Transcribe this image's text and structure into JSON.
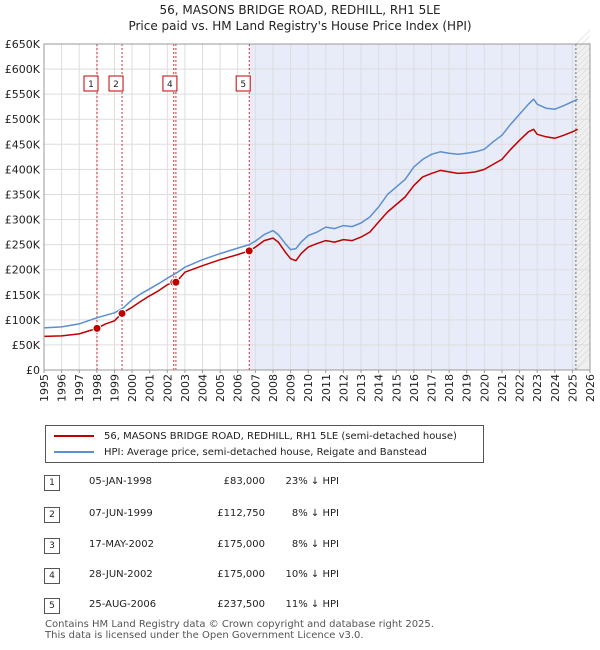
{
  "chart_data": {
    "type": "line",
    "title": "56, MASONS BRIDGE ROAD, REDHILL, RH1 5LE",
    "subtitle": "Price paid vs. HM Land Registry's House Price Index (HPI)",
    "xlim": [
      1995,
      2026
    ],
    "ylim": [
      0,
      650000
    ],
    "x_ticks": [
      "1995",
      "1996",
      "1997",
      "1998",
      "1999",
      "2000",
      "2001",
      "2002",
      "2003",
      "2004",
      "2005",
      "2006",
      "2007",
      "2008",
      "2009",
      "2010",
      "2011",
      "2012",
      "2013",
      "2014",
      "2015",
      "2016",
      "2017",
      "2018",
      "2019",
      "2020",
      "2021",
      "2022",
      "2023",
      "2024",
      "2025",
      "2026"
    ],
    "y_ticks": [
      {
        "v": 0,
        "label": "£0"
      },
      {
        "v": 50000,
        "label": "£50K"
      },
      {
        "v": 100000,
        "label": "£100K"
      },
      {
        "v": 150000,
        "label": "£150K"
      },
      {
        "v": 200000,
        "label": "£200K"
      },
      {
        "v": 250000,
        "label": "£250K"
      },
      {
        "v": 300000,
        "label": "£300K"
      },
      {
        "v": 350000,
        "label": "£350K"
      },
      {
        "v": 400000,
        "label": "£400K"
      },
      {
        "v": 450000,
        "label": "£450K"
      },
      {
        "v": 500000,
        "label": "£500K"
      },
      {
        "v": 550000,
        "label": "£550K"
      },
      {
        "v": 600000,
        "label": "£600K"
      },
      {
        "v": 650000,
        "label": "£650K"
      }
    ],
    "shaded_from": 2006.65,
    "future_from": 2025.2,
    "series": [
      {
        "name": "56, MASONS BRIDGE ROAD, REDHILL, RH1 5LE (semi-detached house)",
        "color": "#c00000",
        "points": [
          [
            1995.0,
            67000
          ],
          [
            1996.0,
            68000
          ],
          [
            1997.0,
            72000
          ],
          [
            1998.0,
            83000
          ],
          [
            1998.5,
            92000
          ],
          [
            1999.0,
            98000
          ],
          [
            1999.4,
            112750
          ],
          [
            2000.0,
            125000
          ],
          [
            2000.5,
            137000
          ],
          [
            2001.0,
            148000
          ],
          [
            2001.5,
            158000
          ],
          [
            2002.0,
            170000
          ],
          [
            2002.4,
            175000
          ],
          [
            2002.5,
            175000
          ],
          [
            2003.0,
            195000
          ],
          [
            2004.0,
            208000
          ],
          [
            2005.0,
            220000
          ],
          [
            2006.0,
            230000
          ],
          [
            2006.65,
            237500
          ],
          [
            2007.0,
            245000
          ],
          [
            2007.5,
            258000
          ],
          [
            2008.0,
            263000
          ],
          [
            2008.3,
            255000
          ],
          [
            2008.7,
            235000
          ],
          [
            2009.0,
            222000
          ],
          [
            2009.3,
            218000
          ],
          [
            2009.6,
            232000
          ],
          [
            2010.0,
            245000
          ],
          [
            2010.5,
            252000
          ],
          [
            2011.0,
            258000
          ],
          [
            2011.5,
            255000
          ],
          [
            2012.0,
            260000
          ],
          [
            2012.5,
            258000
          ],
          [
            2013.0,
            265000
          ],
          [
            2013.5,
            275000
          ],
          [
            2014.0,
            295000
          ],
          [
            2014.5,
            315000
          ],
          [
            2015.0,
            330000
          ],
          [
            2015.5,
            345000
          ],
          [
            2016.0,
            368000
          ],
          [
            2016.5,
            385000
          ],
          [
            2017.0,
            392000
          ],
          [
            2017.5,
            398000
          ],
          [
            2018.0,
            395000
          ],
          [
            2018.5,
            392000
          ],
          [
            2019.0,
            393000
          ],
          [
            2019.5,
            395000
          ],
          [
            2020.0,
            400000
          ],
          [
            2020.5,
            410000
          ],
          [
            2021.0,
            420000
          ],
          [
            2021.5,
            440000
          ],
          [
            2022.0,
            458000
          ],
          [
            2022.5,
            475000
          ],
          [
            2022.8,
            480000
          ],
          [
            2023.0,
            470000
          ],
          [
            2023.5,
            465000
          ],
          [
            2024.0,
            462000
          ],
          [
            2024.5,
            468000
          ],
          [
            2025.0,
            475000
          ],
          [
            2025.3,
            480000
          ]
        ]
      },
      {
        "name": "HPI: Average price, semi-detached house, Reigate and Banstead",
        "color": "#5b8fd0",
        "points": [
          [
            1995.0,
            84000
          ],
          [
            1996.0,
            86000
          ],
          [
            1997.0,
            92000
          ],
          [
            1998.0,
            104000
          ],
          [
            1998.5,
            109000
          ],
          [
            1999.0,
            114000
          ],
          [
            1999.5,
            124000
          ],
          [
            2000.0,
            140000
          ],
          [
            2000.5,
            152000
          ],
          [
            2001.0,
            162000
          ],
          [
            2001.5,
            172000
          ],
          [
            2002.0,
            183000
          ],
          [
            2002.5,
            193000
          ],
          [
            2003.0,
            205000
          ],
          [
            2004.0,
            220000
          ],
          [
            2005.0,
            232000
          ],
          [
            2006.0,
            243000
          ],
          [
            2006.65,
            250000
          ],
          [
            2007.0,
            257000
          ],
          [
            2007.5,
            270000
          ],
          [
            2008.0,
            278000
          ],
          [
            2008.3,
            270000
          ],
          [
            2008.7,
            252000
          ],
          [
            2009.0,
            240000
          ],
          [
            2009.3,
            242000
          ],
          [
            2009.6,
            255000
          ],
          [
            2010.0,
            268000
          ],
          [
            2010.5,
            275000
          ],
          [
            2011.0,
            285000
          ],
          [
            2011.5,
            282000
          ],
          [
            2012.0,
            288000
          ],
          [
            2012.5,
            286000
          ],
          [
            2013.0,
            293000
          ],
          [
            2013.5,
            305000
          ],
          [
            2014.0,
            325000
          ],
          [
            2014.5,
            350000
          ],
          [
            2015.0,
            365000
          ],
          [
            2015.5,
            380000
          ],
          [
            2016.0,
            405000
          ],
          [
            2016.5,
            420000
          ],
          [
            2017.0,
            430000
          ],
          [
            2017.5,
            435000
          ],
          [
            2018.0,
            432000
          ],
          [
            2018.5,
            430000
          ],
          [
            2019.0,
            432000
          ],
          [
            2019.5,
            435000
          ],
          [
            2020.0,
            440000
          ],
          [
            2020.5,
            455000
          ],
          [
            2021.0,
            468000
          ],
          [
            2021.5,
            490000
          ],
          [
            2022.0,
            510000
          ],
          [
            2022.5,
            530000
          ],
          [
            2022.8,
            540000
          ],
          [
            2023.0,
            530000
          ],
          [
            2023.5,
            522000
          ],
          [
            2024.0,
            520000
          ],
          [
            2024.5,
            527000
          ],
          [
            2025.0,
            535000
          ],
          [
            2025.3,
            540000
          ]
        ]
      }
    ],
    "sales": [
      {
        "id": "1",
        "x": 1998.01,
        "value": 83000,
        "date": "05-JAN-1998",
        "price": "£83,000",
        "hpi": "23% ↓ HPI"
      },
      {
        "id": "2",
        "x": 1999.43,
        "value": 112750,
        "date": "07-JUN-1999",
        "price": "£112,750",
        "hpi": "8% ↓ HPI"
      },
      {
        "id": "3",
        "x": 2002.37,
        "value": 175000,
        "date": "17-MAY-2002",
        "price": "£175,000",
        "hpi": "8% ↓ HPI"
      },
      {
        "id": "4",
        "x": 2002.49,
        "value": 175000,
        "date": "28-JUN-2002",
        "price": "£175,000",
        "hpi": "10% ↓ HPI"
      },
      {
        "id": "5",
        "x": 2006.65,
        "value": 237500,
        "date": "25-AUG-2006",
        "price": "£237,500",
        "hpi": "11% ↓ HPI"
      }
    ],
    "marker_labels": [
      "1",
      "2",
      "4",
      "5"
    ]
  },
  "legend": {
    "property": "56, MASONS BRIDGE ROAD, REDHILL, RH1 5LE (semi-detached house)",
    "hpi": "HPI: Average price, semi-detached house, Reigate and Banstead"
  },
  "footer": {
    "line1": "Contains HM Land Registry data © Crown copyright and database right 2025.",
    "line2": "This data is licensed under the Open Government Licence v3.0."
  }
}
